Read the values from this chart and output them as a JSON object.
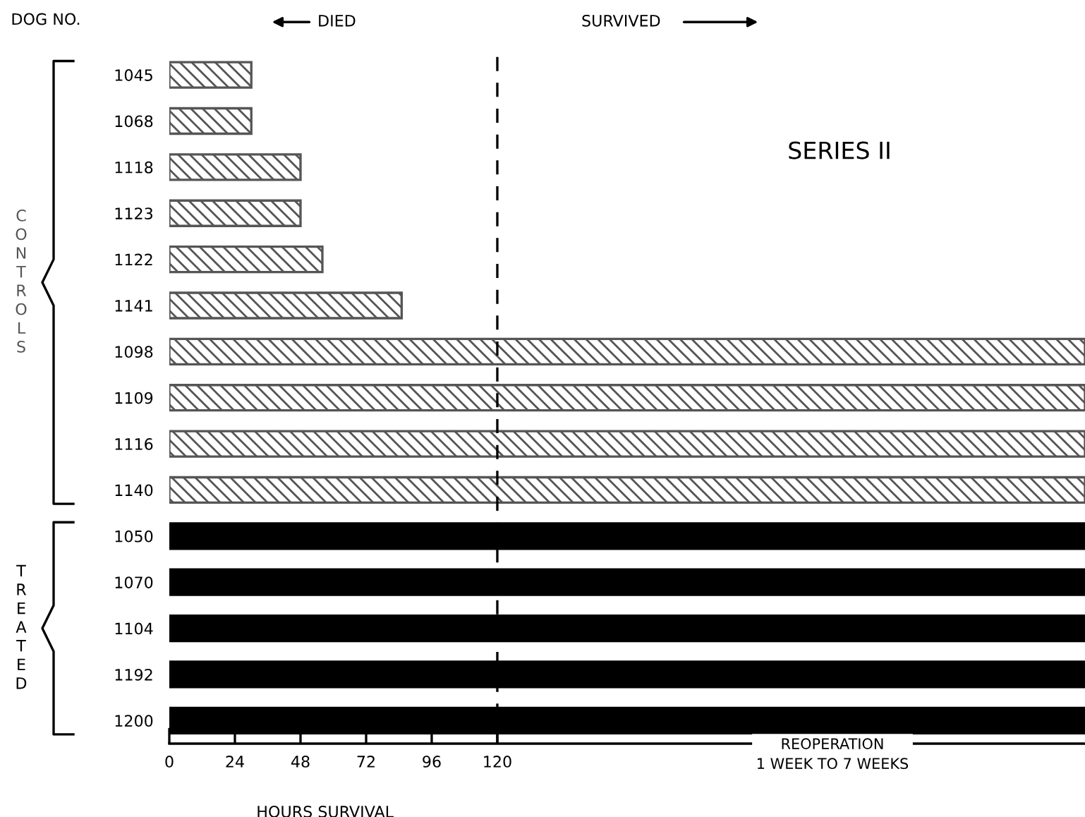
{
  "chart_data": {
    "type": "bar",
    "orientation": "horizontal",
    "ylabel": "DOG NO.",
    "xlabel": "HOURS SURVIVAL",
    "categories": [
      "1045",
      "1068",
      "1118",
      "1123",
      "1122",
      "1141",
      "1098",
      "1109",
      "1116",
      "1140",
      "1050",
      "1070",
      "1104",
      "1192",
      "1200"
    ],
    "series": [
      {
        "name": "CONTROLS",
        "color": "#555555",
        "values": [
          30,
          30,
          48,
          48,
          56,
          85,
          335,
          335,
          335,
          335,
          null,
          null,
          null,
          null,
          null
        ]
      },
      {
        "name": "TREATED",
        "color": "#000000",
        "values": [
          null,
          null,
          null,
          null,
          null,
          null,
          null,
          null,
          null,
          null,
          335,
          335,
          335,
          335,
          335
        ]
      }
    ],
    "xlim": [
      0,
      335
    ],
    "xticks": [
      0,
      24,
      48,
      72,
      96,
      120
    ],
    "ref_lines": [
      {
        "axis": "x",
        "value": 120,
        "color": "#000000",
        "line_style": "dashed"
      }
    ],
    "annotations": [
      "DIED",
      "SURVIVED",
      "SERIES II",
      "REOPERATION\n1 WEEK TO 7 WEEKS"
    ],
    "grid": false,
    "legend": false
  }
}
